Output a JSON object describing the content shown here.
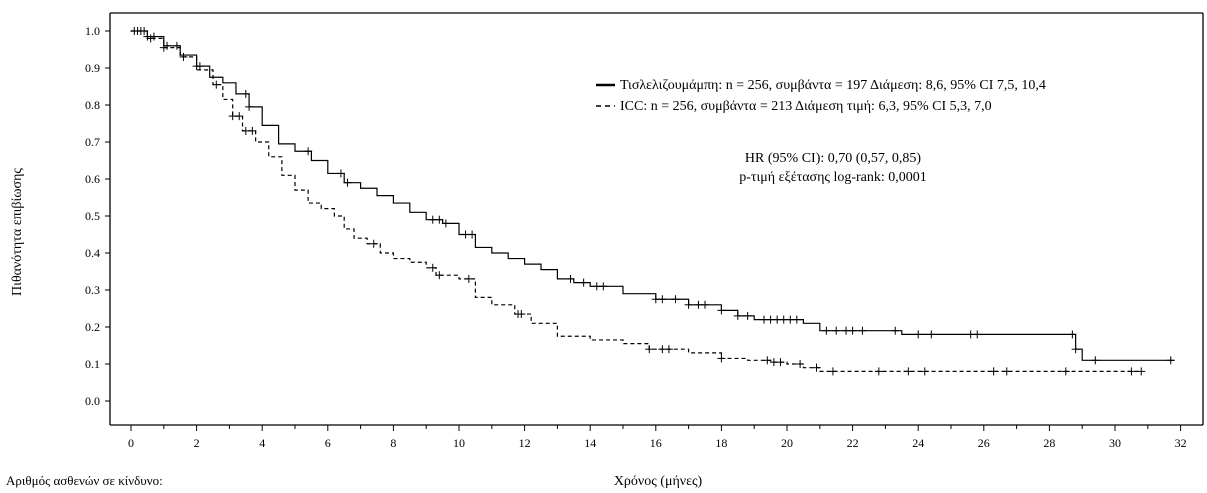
{
  "chart_data": {
    "type": "line",
    "subtype": "kaplan-meier",
    "xlabel": "Χρόνος (μήνες)",
    "ylabel": "Πιθανότητα επιβίωσης",
    "xlim": [
      0,
      32
    ],
    "ylim": [
      0.0,
      1.0
    ],
    "x_ticks": [
      "0",
      "2",
      "4",
      "6",
      "8",
      "10",
      "12",
      "14",
      "16",
      "18",
      "20",
      "22",
      "24",
      "26",
      "28",
      "30",
      "32"
    ],
    "y_ticks": [
      "0.0",
      "0.1",
      "0.2",
      "0.3",
      "0.4",
      "0.5",
      "0.6",
      "0.7",
      "0.8",
      "0.9",
      "1.0"
    ],
    "grid": false,
    "legend_position": "top-right",
    "series": [
      {
        "name": "Τισλελιζουμάμπη: n = 256, συμβάντα = 197 Διάμεση: 8,6, 95% CI 7,5, 10,4",
        "line_style": "solid",
        "color": "#000000",
        "steps": [
          [
            0,
            1.0
          ],
          [
            0.5,
            0.985
          ],
          [
            1.0,
            0.96
          ],
          [
            1.5,
            0.935
          ],
          [
            2.0,
            0.905
          ],
          [
            2.4,
            0.875
          ],
          [
            2.8,
            0.86
          ],
          [
            3.2,
            0.83
          ],
          [
            3.6,
            0.795
          ],
          [
            4.0,
            0.745
          ],
          [
            4.5,
            0.695
          ],
          [
            5.0,
            0.675
          ],
          [
            5.5,
            0.65
          ],
          [
            6.0,
            0.615
          ],
          [
            6.5,
            0.59
          ],
          [
            7.0,
            0.575
          ],
          [
            7.5,
            0.555
          ],
          [
            8.0,
            0.535
          ],
          [
            8.5,
            0.51
          ],
          [
            9.0,
            0.49
          ],
          [
            9.5,
            0.48
          ],
          [
            10.0,
            0.45
          ],
          [
            10.5,
            0.415
          ],
          [
            11.0,
            0.4
          ],
          [
            11.5,
            0.385
          ],
          [
            12.0,
            0.37
          ],
          [
            12.5,
            0.355
          ],
          [
            13.0,
            0.33
          ],
          [
            13.5,
            0.32
          ],
          [
            14.0,
            0.31
          ],
          [
            15.0,
            0.29
          ],
          [
            16.0,
            0.275
          ],
          [
            17.0,
            0.26
          ],
          [
            18.0,
            0.245
          ],
          [
            18.5,
            0.23
          ],
          [
            19.0,
            0.22
          ],
          [
            20.5,
            0.21
          ],
          [
            21.0,
            0.19
          ],
          [
            23.5,
            0.18
          ],
          [
            28.8,
            0.14
          ],
          [
            29.0,
            0.11
          ],
          [
            31.8,
            0.11
          ]
        ],
        "censored": [
          0.1,
          0.3,
          0.5,
          0.7,
          1.1,
          1.4,
          2.0,
          2.1,
          3.5,
          3.6,
          5.4,
          6.4,
          6.6,
          9.2,
          9.4,
          9.6,
          10.2,
          10.4,
          13.4,
          13.8,
          14.2,
          14.4,
          16.0,
          16.2,
          16.6,
          17.0,
          17.3,
          17.5,
          18.0,
          18.5,
          18.8,
          19.3,
          19.5,
          19.7,
          19.9,
          20.1,
          20.3,
          21.2,
          21.5,
          21.8,
          22.0,
          22.3,
          23.3,
          24.0,
          24.4,
          25.6,
          25.8,
          28.7,
          28.8,
          29.4,
          31.7
        ]
      },
      {
        "name": "ICC: n = 256, συμβάντα = 213 Διάμεση τιμή: 6,3, 95% CI 5,3, 7,0",
        "line_style": "dashed",
        "color": "#000000",
        "steps": [
          [
            0,
            1.0
          ],
          [
            0.5,
            0.98
          ],
          [
            1.0,
            0.955
          ],
          [
            1.5,
            0.93
          ],
          [
            2.0,
            0.895
          ],
          [
            2.5,
            0.855
          ],
          [
            2.8,
            0.815
          ],
          [
            3.1,
            0.77
          ],
          [
            3.4,
            0.73
          ],
          [
            3.8,
            0.7
          ],
          [
            4.2,
            0.66
          ],
          [
            4.6,
            0.61
          ],
          [
            5.0,
            0.57
          ],
          [
            5.4,
            0.535
          ],
          [
            5.8,
            0.52
          ],
          [
            6.2,
            0.5
          ],
          [
            6.5,
            0.465
          ],
          [
            6.8,
            0.44
          ],
          [
            7.2,
            0.425
          ],
          [
            7.6,
            0.4
          ],
          [
            8.0,
            0.385
          ],
          [
            8.5,
            0.375
          ],
          [
            9.0,
            0.36
          ],
          [
            9.3,
            0.34
          ],
          [
            10.0,
            0.33
          ],
          [
            10.5,
            0.28
          ],
          [
            11.0,
            0.26
          ],
          [
            11.7,
            0.235
          ],
          [
            12.2,
            0.21
          ],
          [
            13.0,
            0.175
          ],
          [
            14.0,
            0.165
          ],
          [
            15.0,
            0.155
          ],
          [
            15.8,
            0.14
          ],
          [
            17.0,
            0.13
          ],
          [
            18.0,
            0.115
          ],
          [
            18.8,
            0.11
          ],
          [
            19.5,
            0.105
          ],
          [
            20.0,
            0.1
          ],
          [
            20.5,
            0.09
          ],
          [
            21.0,
            0.08
          ],
          [
            30.8,
            0.08
          ]
        ],
        "censored": [
          0.2,
          0.4,
          0.6,
          1.0,
          1.6,
          2.6,
          3.1,
          3.3,
          3.5,
          3.7,
          7.4,
          9.2,
          9.4,
          10.3,
          11.8,
          11.9,
          15.8,
          16.2,
          16.4,
          18.0,
          19.4,
          19.6,
          19.8,
          20.4,
          20.9,
          21.4,
          22.8,
          23.7,
          24.2,
          26.3,
          26.7,
          28.5,
          30.5,
          30.8
        ]
      }
    ],
    "annotations": [
      "HR (95% CI): 0,70 (0,57, 0,85)",
      "p-τιμή εξέτασης log-rank: 0,0001"
    ]
  },
  "risk_table": {
    "title": "Αριθμός ασθενών σε κίνδυνο:"
  }
}
